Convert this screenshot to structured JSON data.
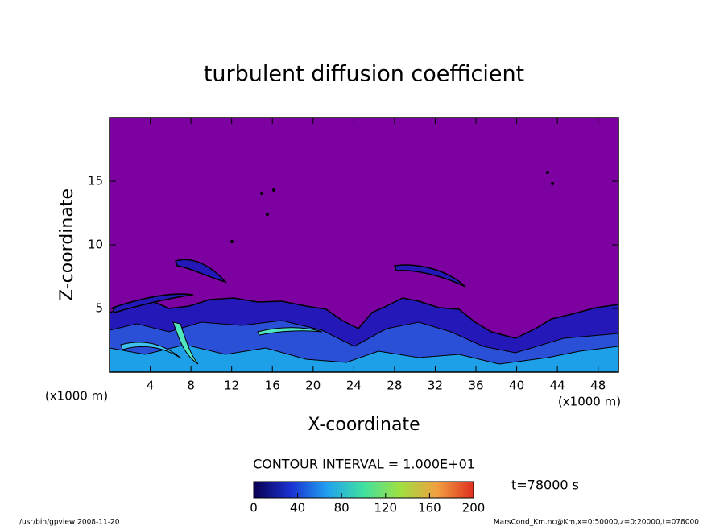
{
  "chart_data": {
    "type": "contour",
    "title": "turbulent diffusion coefficient",
    "x_label": "X-coordinate",
    "y_label": "Z-coordinate",
    "x_unit": "(x1000 m)",
    "y_unit": "(x1000 m)",
    "xlim": [
      0,
      50
    ],
    "xticks": [
      4,
      8,
      12,
      16,
      20,
      24,
      28,
      32,
      36,
      40,
      44,
      48
    ],
    "ylim": [
      0,
      20
    ],
    "yticks": [
      5,
      10,
      15
    ],
    "background_color": "#7d00a0",
    "contour_interval_label": "CONTOUR INTERVAL = 1.000E+01",
    "time_label": "t=78000 s",
    "colorbar": {
      "lim": [
        0,
        200
      ],
      "ticks": [
        0,
        40,
        80,
        120,
        160,
        200
      ],
      "colors": [
        "#0a0050",
        "#1a30d0",
        "#20a0f0",
        "#40e0a0",
        "#a0e040",
        "#f0a040",
        "#e03020"
      ]
    },
    "footer_left": "/usr/bin/gpview   2008-11-20",
    "footer_right": "MarsCond_Km.nc@Km,x=0:50000,z=0:20000,t=078000"
  }
}
